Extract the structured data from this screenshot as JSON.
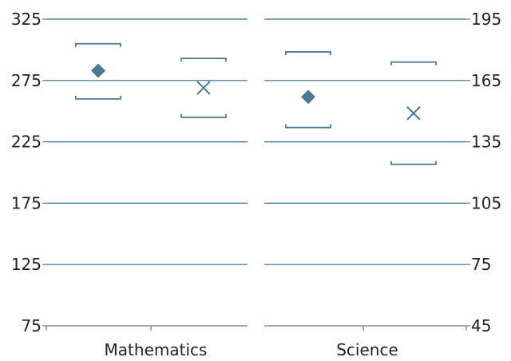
{
  "chart_data": [
    {
      "type": "scatter",
      "category": "Mathematics",
      "y_axis": {
        "side": "left",
        "ylim": [
          75,
          325
        ],
        "ticks": [
          "75",
          "125",
          "175",
          "225",
          "275",
          "325"
        ]
      },
      "grid": true,
      "series": [
        {
          "marker": "diamond",
          "value": 283,
          "range": [
            260,
            305
          ]
        },
        {
          "marker": "x",
          "value": 269,
          "range": [
            245,
            293
          ]
        }
      ]
    },
    {
      "type": "scatter",
      "category": "Science",
      "y_axis": {
        "side": "right",
        "ylim": [
          45,
          195
        ],
        "ticks": [
          "45",
          "75",
          "105",
          "135",
          "165",
          "195"
        ]
      },
      "grid": true,
      "series": [
        {
          "marker": "diamond",
          "value": 157,
          "range": [
            142,
            179
          ]
        },
        {
          "marker": "x",
          "value": 149,
          "range": [
            124,
            174
          ]
        }
      ]
    }
  ],
  "colors": {
    "marker": "#4a7a94",
    "grid": "#2e6d8c",
    "axis": "#777777",
    "text": "#222222"
  }
}
